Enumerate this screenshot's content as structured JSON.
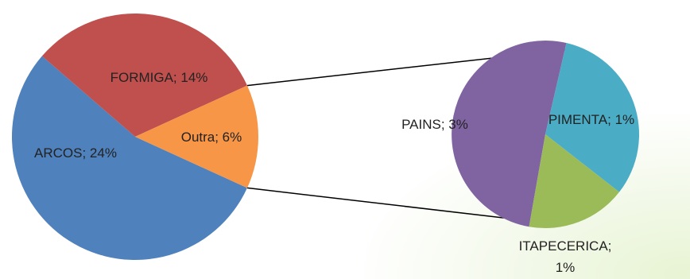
{
  "chart_data": {
    "type": "pie",
    "subtype": "pie-of-pie",
    "primary_slices": [
      {
        "label": "ARCOS",
        "value_label": "24%",
        "value": 24,
        "color": "#4F81BD"
      },
      {
        "label": "FORMIGA",
        "value_label": "14%",
        "value": 14,
        "color": "#C0504D"
      },
      {
        "label": "Outra",
        "value_label": "6%",
        "value": 6,
        "color": "#F79646"
      }
    ],
    "secondary_slices": [
      {
        "label": "PAINS",
        "value_label": "3%",
        "value": 3,
        "color": "#8064A2"
      },
      {
        "label": "PIMENTA",
        "value_label": "1%",
        "value": 1,
        "color": "#4BACC6"
      },
      {
        "label": "ITAPECERICA",
        "value_label": "1%",
        "value": 1,
        "color": "#9BBB59"
      }
    ],
    "legend": "none"
  }
}
